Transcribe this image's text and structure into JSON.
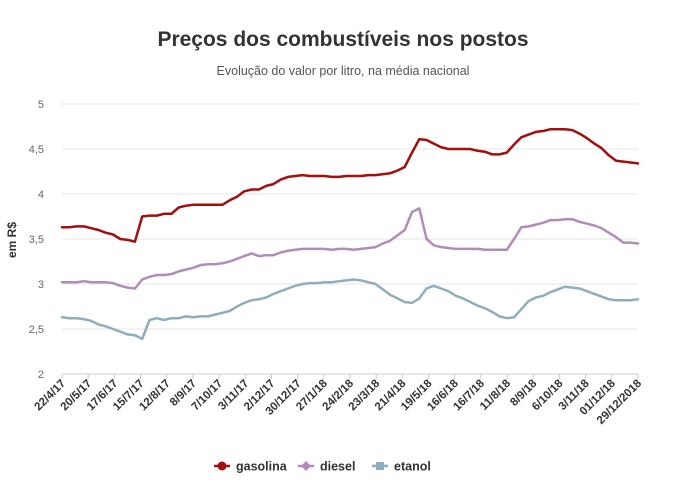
{
  "chart_data": {
    "type": "line",
    "title": "Preços dos combustíveis nos postos",
    "subtitle": "Evolução do valor por litro, na média nacional",
    "ylabel": "em R$",
    "xlabel": "",
    "ylim": [
      2,
      5
    ],
    "yticks": [
      "2",
      "2,5",
      "3",
      "3,5",
      "4",
      "4,5",
      "5"
    ],
    "grid": true,
    "legend_position": "bottom",
    "x_tick_labels": [
      "22/4/17",
      "20/5/17",
      "17/6/17",
      "15/7/17",
      "12/8/17",
      "8/9/17",
      "7/10/17",
      "3/11/17",
      "2/12/17",
      "30/12/17",
      "27/1/18",
      "24/2/18",
      "23/3/18",
      "21/4/18",
      "19/5/18",
      "16/6/18",
      "16/7/18",
      "11/8/18",
      "8/9/18",
      "6/10/18",
      "3/11/18",
      "01/12/18",
      "29/12/2018"
    ],
    "series": [
      {
        "name": "gasolina",
        "color": "#a10f0f",
        "values": [
          3.63,
          3.63,
          3.64,
          3.64,
          3.62,
          3.6,
          3.57,
          3.55,
          3.5,
          3.49,
          3.47,
          3.75,
          3.76,
          3.76,
          3.78,
          3.78,
          3.85,
          3.87,
          3.88,
          3.88,
          3.88,
          3.88,
          3.88,
          3.93,
          3.97,
          4.03,
          4.05,
          4.05,
          4.09,
          4.11,
          4.16,
          4.19,
          4.2,
          4.21,
          4.2,
          4.2,
          4.2,
          4.19,
          4.19,
          4.2,
          4.2,
          4.2,
          4.21,
          4.21,
          4.22,
          4.23,
          4.26,
          4.3,
          4.46,
          4.61,
          4.6,
          4.56,
          4.52,
          4.5,
          4.5,
          4.5,
          4.5,
          4.48,
          4.47,
          4.44,
          4.44,
          4.46,
          4.55,
          4.63,
          4.66,
          4.69,
          4.7,
          4.72,
          4.72,
          4.72,
          4.71,
          4.67,
          4.62,
          4.56,
          4.51,
          4.43,
          4.37,
          4.36,
          4.35,
          4.34
        ]
      },
      {
        "name": "diesel",
        "color": "#b08db8",
        "values": [
          3.02,
          3.02,
          3.02,
          3.03,
          3.02,
          3.02,
          3.02,
          3.01,
          2.98,
          2.96,
          2.95,
          3.05,
          3.08,
          3.1,
          3.1,
          3.11,
          3.14,
          3.16,
          3.18,
          3.21,
          3.22,
          3.22,
          3.23,
          3.25,
          3.28,
          3.31,
          3.34,
          3.31,
          3.32,
          3.32,
          3.35,
          3.37,
          3.38,
          3.39,
          3.39,
          3.39,
          3.39,
          3.38,
          3.39,
          3.39,
          3.38,
          3.39,
          3.4,
          3.41,
          3.45,
          3.48,
          3.54,
          3.6,
          3.8,
          3.84,
          3.5,
          3.43,
          3.41,
          3.4,
          3.39,
          3.39,
          3.39,
          3.39,
          3.38,
          3.38,
          3.38,
          3.38,
          3.5,
          3.63,
          3.64,
          3.66,
          3.68,
          3.71,
          3.71,
          3.72,
          3.72,
          3.69,
          3.67,
          3.65,
          3.62,
          3.57,
          3.52,
          3.46,
          3.46,
          3.45
        ]
      },
      {
        "name": "etanol",
        "color": "#8fadbd",
        "values": [
          2.63,
          2.62,
          2.62,
          2.61,
          2.59,
          2.55,
          2.53,
          2.5,
          2.47,
          2.44,
          2.43,
          2.39,
          2.6,
          2.62,
          2.6,
          2.62,
          2.62,
          2.64,
          2.63,
          2.64,
          2.64,
          2.66,
          2.68,
          2.7,
          2.75,
          2.79,
          2.82,
          2.83,
          2.85,
          2.89,
          2.92,
          2.95,
          2.98,
          3.0,
          3.01,
          3.01,
          3.02,
          3.02,
          3.03,
          3.04,
          3.05,
          3.04,
          3.02,
          3.0,
          2.94,
          2.88,
          2.84,
          2.8,
          2.79,
          2.84,
          2.95,
          2.98,
          2.95,
          2.92,
          2.87,
          2.84,
          2.8,
          2.76,
          2.73,
          2.69,
          2.64,
          2.62,
          2.63,
          2.72,
          2.81,
          2.85,
          2.87,
          2.91,
          2.94,
          2.97,
          2.96,
          2.95,
          2.92,
          2.89,
          2.86,
          2.83,
          2.82,
          2.82,
          2.82,
          2.83
        ]
      }
    ]
  }
}
